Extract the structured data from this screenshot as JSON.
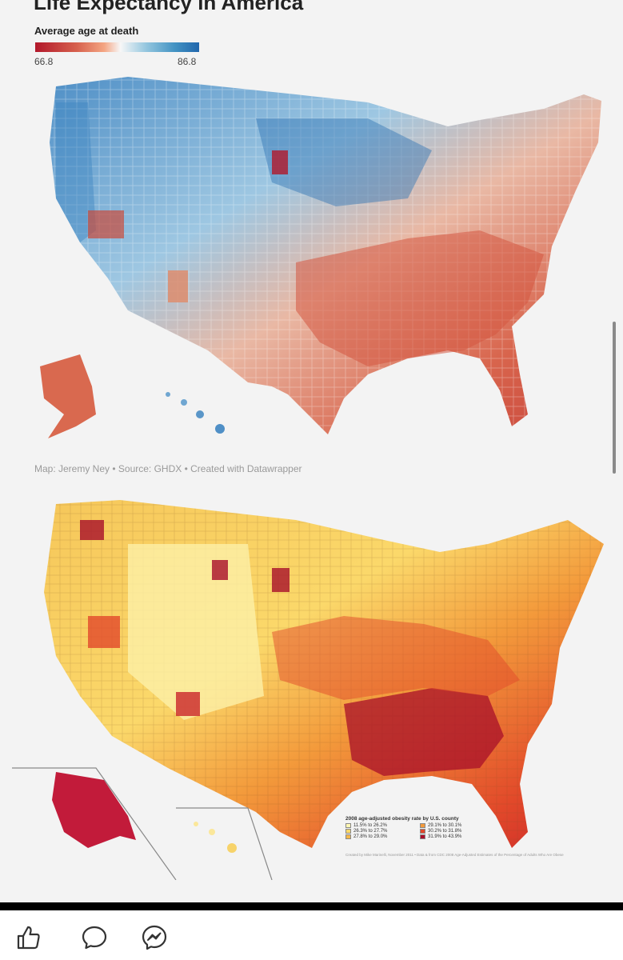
{
  "post_image": {
    "map1": {
      "title": "Life Expectancy in America",
      "legend_label": "Average age at death",
      "legend_min": "66.8",
      "legend_max": "86.8",
      "credit": "Map: Jeremy Ney • Source: GHDX • Created with Datawrapper",
      "colors": {
        "low": "#b2182b",
        "mid": "#f7f7f7",
        "high": "#2166ac"
      }
    },
    "map2": {
      "legend_title": "2008 age-adjusted obesity rate by U.S. county",
      "legend_items": [
        {
          "label": "11.5% to 26.2%",
          "color": "#fff7b3"
        },
        {
          "label": "29.1% to 30.1%",
          "color": "#f39a3b"
        },
        {
          "label": "26.3% to 27.7%",
          "color": "#fbd86a"
        },
        {
          "label": "30.2% to 31.8%",
          "color": "#e2492a"
        },
        {
          "label": "27.8% to 29.0%",
          "color": "#f6b94a"
        },
        {
          "label": "31.9% to 43.9%",
          "color": "#a80f2a"
        }
      ],
      "credit": "Created by Mike Marinelli, November 2011 • Data & from CDC 2008 Age-Adjusted Estimates of the Percentage of Adults Who Are Obese"
    }
  },
  "actions": {
    "like_icon": "thumbs-up-icon",
    "comment_icon": "comment-icon",
    "share_icon": "messenger-icon"
  }
}
